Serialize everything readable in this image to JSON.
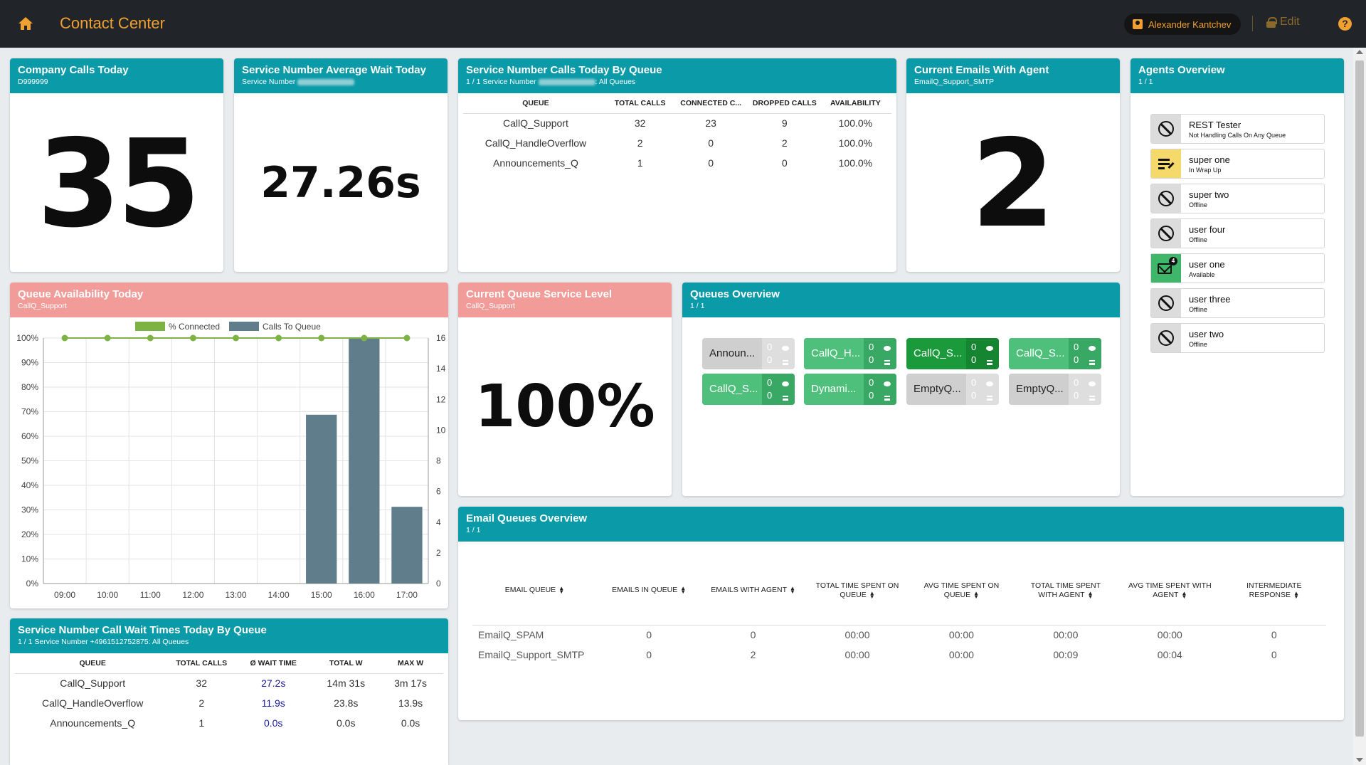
{
  "header": {
    "title": "Contact Center",
    "user_name": "Alexander Kantchev",
    "edit_label": "Edit",
    "help_label": "?"
  },
  "company_calls": {
    "title": "Company Calls Today",
    "subtitle": "D999999",
    "value": "35"
  },
  "avg_wait": {
    "title": "Service Number Average Wait Today",
    "subtitle_prefix": "Service Number",
    "value": "27.26s"
  },
  "calls_by_queue": {
    "title": "Service Number Calls Today By Queue",
    "subtitle_prefix": "1 / 1 Service Number",
    "subtitle_suffix": ": All Queues",
    "columns": [
      "QUEUE",
      "TOTAL CALLS",
      "CONNECTED C...",
      "DROPPED CALLS",
      "AVAILABILITY"
    ],
    "rows": [
      [
        "CallQ_Support",
        "32",
        "23",
        "9",
        "100.0%"
      ],
      [
        "CallQ_HandleOverflow",
        "2",
        "0",
        "2",
        "100.0%"
      ],
      [
        "Announcements_Q",
        "1",
        "0",
        "0",
        "100.0%"
      ]
    ]
  },
  "emails_with_agent": {
    "title": "Current Emails With Agent",
    "subtitle": "EmailQ_Support_SMTP",
    "value": "2"
  },
  "agents": {
    "title": "Agents Overview",
    "subtitle": "1 / 1",
    "items": [
      {
        "name": "REST Tester",
        "status": "Not Handling Calls On Any Queue",
        "icon": "ban-icon"
      },
      {
        "name": "super one",
        "status": "In Wrap Up",
        "icon": "wrap-up-icon"
      },
      {
        "name": "super two",
        "status": "Offline",
        "icon": "ban-icon"
      },
      {
        "name": "user four",
        "status": "Offline",
        "icon": "ban-icon"
      },
      {
        "name": "user one",
        "status": "Available",
        "icon": "email-chat-icon",
        "badge": "4"
      },
      {
        "name": "user three",
        "status": "Offline",
        "icon": "ban-icon"
      },
      {
        "name": "user two",
        "status": "Offline",
        "icon": "ban-icon"
      }
    ]
  },
  "queue_availability": {
    "title": "Queue Availability Today",
    "subtitle": "CallQ_Support"
  },
  "chart_data": {
    "type": "bar",
    "categories": [
      "09:00",
      "10:00",
      "11:00",
      "12:00",
      "13:00",
      "14:00",
      "15:00",
      "16:00",
      "17:00"
    ],
    "series": [
      {
        "name": "% Connected",
        "type": "line",
        "axis": "left",
        "values": [
          100,
          100,
          100,
          100,
          100,
          100,
          100,
          100,
          100
        ],
        "color": "#7cb342"
      },
      {
        "name": "Calls To Queue",
        "type": "bar",
        "axis": "right",
        "values": [
          0,
          0,
          0,
          0,
          0,
          0,
          11,
          16,
          5
        ],
        "color": "#607d8b"
      }
    ],
    "y_left_ticks": [
      "0%",
      "10%",
      "20%",
      "30%",
      "40%",
      "50%",
      "60%",
      "70%",
      "80%",
      "90%",
      "100%"
    ],
    "y_left_range": [
      0,
      100
    ],
    "y_right_ticks": [
      "0",
      "2",
      "4",
      "6",
      "8",
      "10",
      "12",
      "14",
      "16"
    ],
    "y_right_range": [
      0,
      16
    ],
    "legend_position": "top",
    "grid": true
  },
  "service_level": {
    "title": "Current Queue Service Level",
    "subtitle": "CallQ_Support",
    "value": "100%"
  },
  "queues_overview": {
    "title": "Queues Overview",
    "subtitle": "1 / 1",
    "tiles": [
      {
        "name": "Announ...",
        "a": "0",
        "b": "0",
        "style": "gray"
      },
      {
        "name": "CallQ_H...",
        "a": "0",
        "b": "0",
        "style": "green"
      },
      {
        "name": "CallQ_S...",
        "a": "0",
        "b": "0",
        "style": "dgreen"
      },
      {
        "name": "CallQ_S...",
        "a": "0",
        "b": "0",
        "style": "green"
      },
      {
        "name": "CallQ_S...",
        "a": "0",
        "b": "0",
        "style": "green"
      },
      {
        "name": "Dynami...",
        "a": "0",
        "b": "0",
        "style": "green"
      },
      {
        "name": "EmptyQ...",
        "a": "0",
        "b": "0",
        "style": "gray"
      },
      {
        "name": "EmptyQ...",
        "a": "0",
        "b": "0",
        "style": "gray"
      }
    ]
  },
  "wait_times": {
    "title": "Service Number Call Wait Times Today By Queue",
    "subtitle": "1 / 1 Service Number +4961512752875: All Queues",
    "columns": [
      "QUEUE",
      "TOTAL CALLS",
      "Ø WAIT TIME",
      "TOTAL W",
      "MAX W"
    ],
    "rows": [
      [
        "CallQ_Support",
        "32",
        "27.2s",
        "14m 31s",
        "3m 17s"
      ],
      [
        "CallQ_HandleOverflow",
        "2",
        "11.9s",
        "23.8s",
        "13.9s"
      ],
      [
        "Announcements_Q",
        "1",
        "0.0s",
        "0.0s",
        "0.0s"
      ]
    ]
  },
  "email_queues": {
    "title": "Email Queues Overview",
    "subtitle": "1 / 1",
    "columns": [
      [
        "EMAIL QUEUE"
      ],
      [
        "EMAILS IN QUEUE"
      ],
      [
        "EMAILS WITH AGENT"
      ],
      [
        "TOTAL TIME SPENT ON",
        "QUEUE"
      ],
      [
        "AVG TIME SPENT ON",
        "QUEUE"
      ],
      [
        "TOTAL TIME SPENT",
        "WITH AGENT"
      ],
      [
        "AVG TIME SPENT WITH",
        "AGENT"
      ],
      [
        "INTERMEDIATE",
        "RESPONSE"
      ]
    ],
    "rows": [
      [
        "EmailQ_SPAM",
        "0",
        "0",
        "00:00",
        "00:00",
        "00:00",
        "00:00",
        "0"
      ],
      [
        "EmailQ_Support_SMTP",
        "0",
        "2",
        "00:00",
        "00:00",
        "00:09",
        "00:04",
        "0"
      ]
    ]
  }
}
